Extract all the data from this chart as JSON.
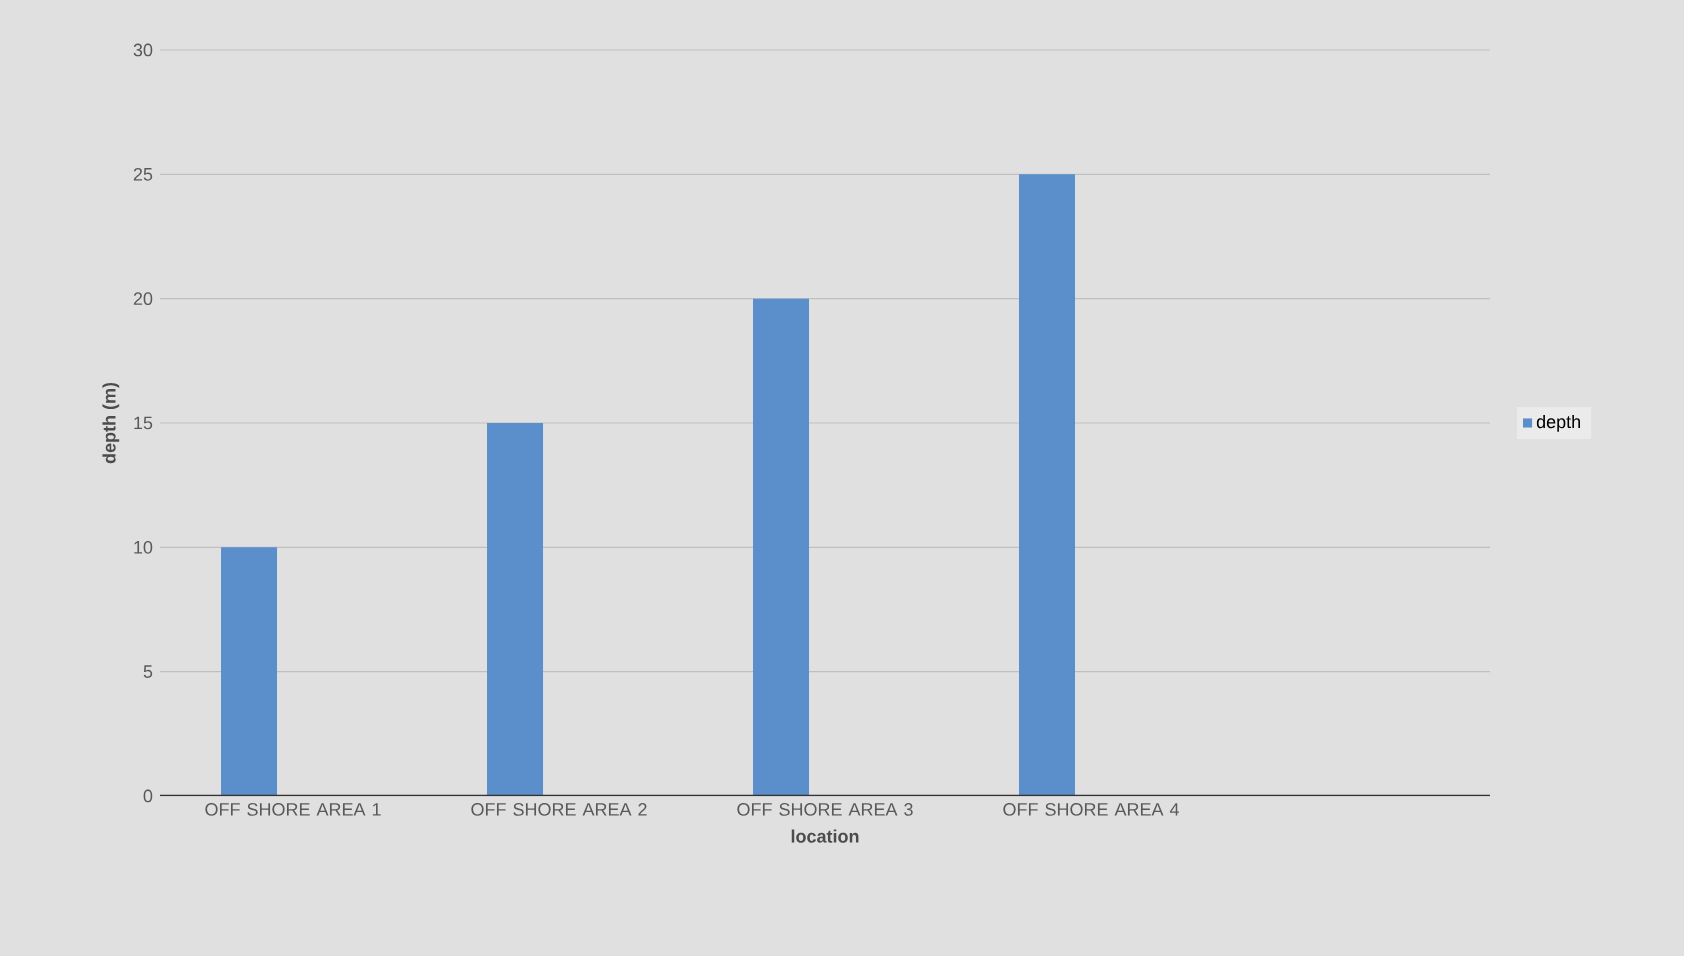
{
  "chart_data": {
    "type": "bar",
    "xlabel": "location",
    "ylabel": "depth (m)",
    "categories": [
      "OFF SHORE AREA 1",
      "OFF SHORE AREA 2",
      "OFF SHORE AREA 3",
      "OFF SHORE AREA 4",
      null
    ],
    "series": [
      {
        "name": "depth",
        "color": "#5b8fcb",
        "values": [
          10,
          15,
          20,
          25,
          null
        ]
      }
    ],
    "ylim": [
      0,
      30
    ],
    "yticks": [
      0,
      5,
      10,
      15,
      20,
      25,
      30
    ],
    "grid": "y",
    "legend": "right"
  }
}
